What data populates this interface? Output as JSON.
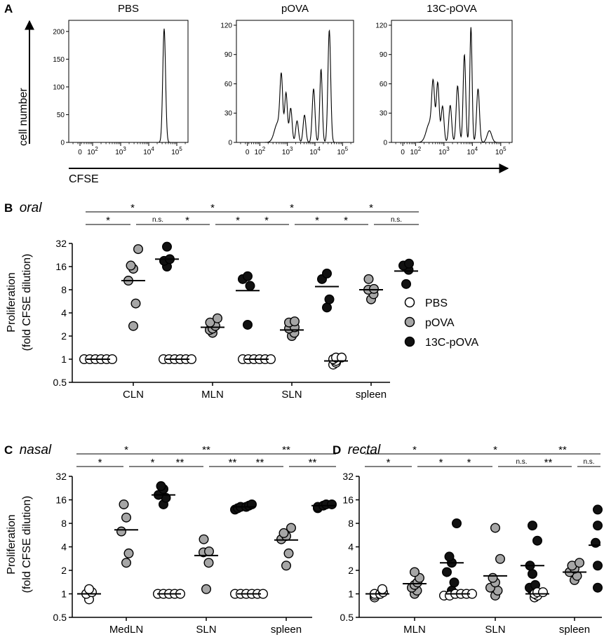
{
  "colors": {
    "PBS": "#ffffff",
    "pOVA": "#a6a6a6",
    "13C-pOVA": "#111111",
    "stroke": "#000000"
  },
  "panelA": {
    "label": "A",
    "y_axis_label": "cell number",
    "x_axis_label": "CFSE",
    "x_tick_labels": [
      {
        "base": "0",
        "exp": ""
      },
      {
        "base": "10",
        "exp": "2"
      },
      {
        "base": "10",
        "exp": "3"
      },
      {
        "base": "10",
        "exp": "4"
      },
      {
        "base": "10",
        "exp": "5"
      }
    ],
    "histograms": [
      {
        "title": "PBS",
        "ylim": [
          0,
          220
        ],
        "yticks": [
          0,
          50,
          100,
          150,
          200
        ],
        "peaks": [
          {
            "log_cfse": 4.55,
            "count": 205,
            "width": 0.05
          }
        ]
      },
      {
        "title": "pOVA",
        "ylim": [
          0,
          125
        ],
        "yticks": [
          0,
          30,
          60,
          90,
          120
        ],
        "peaks": [
          {
            "log_cfse": 2.65,
            "count": 20,
            "width": 0.12
          },
          {
            "log_cfse": 2.78,
            "count": 60,
            "width": 0.05
          },
          {
            "log_cfse": 2.95,
            "count": 50,
            "width": 0.05
          },
          {
            "log_cfse": 3.12,
            "count": 35,
            "width": 0.05
          },
          {
            "log_cfse": 3.35,
            "count": 22,
            "width": 0.05
          },
          {
            "log_cfse": 3.62,
            "count": 28,
            "width": 0.05
          },
          {
            "log_cfse": 3.95,
            "count": 55,
            "width": 0.05
          },
          {
            "log_cfse": 4.22,
            "count": 75,
            "width": 0.045
          },
          {
            "log_cfse": 4.52,
            "count": 115,
            "width": 0.05
          }
        ]
      },
      {
        "title": "13C-pOVA",
        "ylim": [
          0,
          125
        ],
        "yticks": [
          0,
          30,
          60,
          90,
          120
        ],
        "peaks": [
          {
            "log_cfse": 2.5,
            "count": 20,
            "width": 0.12
          },
          {
            "log_cfse": 2.62,
            "count": 52,
            "width": 0.05
          },
          {
            "log_cfse": 2.78,
            "count": 60,
            "width": 0.05
          },
          {
            "log_cfse": 2.95,
            "count": 37,
            "width": 0.05
          },
          {
            "log_cfse": 3.22,
            "count": 38,
            "width": 0.05
          },
          {
            "log_cfse": 3.48,
            "count": 58,
            "width": 0.05
          },
          {
            "log_cfse": 3.72,
            "count": 90,
            "width": 0.045
          },
          {
            "log_cfse": 3.95,
            "count": 118,
            "width": 0.04
          },
          {
            "log_cfse": 4.2,
            "count": 55,
            "width": 0.05
          },
          {
            "log_cfse": 4.6,
            "count": 12,
            "width": 0.08
          }
        ]
      }
    ]
  },
  "scatter_axis": {
    "ylabel_line1": "Proliferation",
    "ylabel_line2": "(fold CFSE dilution)",
    "yticks": [
      "0.5",
      "1",
      "2",
      "4",
      "8",
      "16",
      "32"
    ],
    "ylim": [
      0.5,
      32
    ]
  },
  "legend": [
    "PBS",
    "pOVA",
    "13C-pOVA"
  ],
  "chart_data": [
    {
      "type": "scatter",
      "panel": "B",
      "title": "oral",
      "ylabel": "Proliferation (fold CFSE dilution)",
      "yscale": "log2",
      "ylim": [
        0.5,
        32
      ],
      "groups": [
        {
          "name": "CLN",
          "sig": [
            "*",
            "*",
            "n.s."
          ],
          "PBS": [
            1,
            1,
            1,
            1,
            1,
            1
          ],
          "PBS_mean": 1,
          "pOVA": [
            2.7,
            5.3,
            10.5,
            15,
            16.5,
            27
          ],
          "pOVA_mean": 10.5,
          "13C-pOVA": [
            16,
            19,
            20,
            29
          ],
          "13C-pOVA_mean": 20
        },
        {
          "name": "MLN",
          "sig": [
            "*",
            "*",
            "*"
          ],
          "PBS": [
            1,
            1,
            1,
            1,
            1,
            1
          ],
          "PBS_mean": 1,
          "pOVA": [
            2.2,
            2.4,
            2.5,
            2.7,
            3.0,
            3.4
          ],
          "pOVA_mean": 2.6,
          "13C-pOVA": [
            2.8,
            9.0,
            11,
            12
          ],
          "13C-pOVA_mean": 7.8
        },
        {
          "name": "SLN",
          "sig": [
            "*",
            "*",
            "*"
          ],
          "PBS": [
            1,
            1,
            1,
            1,
            1,
            1
          ],
          "PBS_mean": 1,
          "pOVA": [
            2.0,
            2.2,
            2.5,
            2.6,
            3.0,
            3.1
          ],
          "pOVA_mean": 2.4,
          "13C-pOVA": [
            4.7,
            6.0,
            11,
            13
          ],
          "13C-pOVA_mean": 8.8
        },
        {
          "name": "spleen",
          "sig": [
            "*",
            "*",
            "n.s."
          ],
          "PBS": [
            0.85,
            0.9,
            0.95,
            1.0,
            1.05,
            1.05
          ],
          "PBS_mean": 0.95,
          "pOVA": [
            6.0,
            7.0,
            8.0,
            8.2,
            11.0
          ],
          "pOVA_mean": 8.0,
          "13C-pOVA": [
            9.5,
            14.5,
            16.5,
            17.5
          ],
          "13C-pOVA_mean": 14.0
        }
      ]
    },
    {
      "type": "scatter",
      "panel": "C",
      "title": "nasal",
      "ylabel": "Proliferation (fold CFSE dilution)",
      "yscale": "log2",
      "ylim": [
        0.5,
        32
      ],
      "groups": [
        {
          "name": "MedLN",
          "sig": [
            "*",
            "*",
            "*"
          ],
          "PBS": [
            0.85,
            1.0,
            1.05,
            1.15
          ],
          "PBS_mean": 1,
          "pOVA": [
            2.5,
            3.3,
            6.3,
            9.5,
            14
          ],
          "pOVA_mean": 6.6,
          "13C-pOVA": [
            14,
            17,
            18.5,
            22,
            24
          ],
          "13C-pOVA_mean": 18.5
        },
        {
          "name": "SLN",
          "sig": [
            "**",
            "**",
            "**"
          ],
          "PBS": [
            1,
            1,
            1,
            1,
            1
          ],
          "PBS_mean": 1,
          "pOVA": [
            1.15,
            2.5,
            3.4,
            3.5,
            5.0
          ],
          "pOVA_mean": 3.1,
          "13C-pOVA": [
            12,
            12.5,
            13,
            13,
            13.5,
            14
          ],
          "13C-pOVA_mean": 13
        },
        {
          "name": "spleen",
          "sig": [
            "**",
            "**",
            "**"
          ],
          "PBS": [
            1,
            1,
            1,
            1,
            1,
            1
          ],
          "PBS_mean": 1,
          "pOVA": [
            2.3,
            3.3,
            5.0,
            5.5,
            6.0,
            7.0
          ],
          "pOVA_mean": 4.9,
          "13C-pOVA": [
            12.5,
            13,
            13.5,
            14,
            14
          ],
          "13C-pOVA_mean": 13.5
        }
      ]
    },
    {
      "type": "scatter",
      "panel": "D",
      "title": "rectal",
      "ylabel": "Proliferation (fold CFSE dilution)",
      "yscale": "log2",
      "ylim": [
        0.5,
        32
      ],
      "groups": [
        {
          "name": "MLN",
          "sig": [
            "*",
            "*",
            "*"
          ],
          "PBS": [
            0.9,
            0.95,
            1.0,
            1.0,
            1.05,
            1.15
          ],
          "PBS_mean": 1,
          "pOVA": [
            1.0,
            1.1,
            1.2,
            1.3,
            1.4,
            1.6,
            1.9
          ],
          "pOVA_mean": 1.35,
          "13C-pOVA": [
            1.1,
            1.4,
            1.9,
            2.5,
            3.0,
            8.0
          ],
          "13C-pOVA_mean": 2.5
        },
        {
          "name": "SLN",
          "sig": [
            "*",
            "*",
            "n.s."
          ],
          "PBS": [
            0.95,
            0.95,
            1.0,
            1.0,
            1.0,
            1.0
          ],
          "PBS_mean": 1,
          "pOVA": [
            0.95,
            1.1,
            1.2,
            1.4,
            1.6,
            2.8,
            7.0
          ],
          "pOVA_mean": 1.7,
          "13C-pOVA": [
            1.1,
            1.2,
            1.3,
            1.8,
            2.3,
            4.8,
            7.5
          ],
          "13C-pOVA_mean": 2.3
        },
        {
          "name": "spleen",
          "sig": [
            "**",
            "**",
            "n.s."
          ],
          "PBS": [
            0.9,
            0.95,
            1.0,
            1.05,
            1.05
          ],
          "PBS_mean": 1,
          "pOVA": [
            1.5,
            1.7,
            1.9,
            2.1,
            2.3,
            2.5
          ],
          "pOVA_mean": 1.9,
          "13C-pOVA": [
            1.2,
            2.3,
            4.5,
            7.5,
            12
          ],
          "13C-pOVA_mean": 4.2
        }
      ]
    }
  ]
}
